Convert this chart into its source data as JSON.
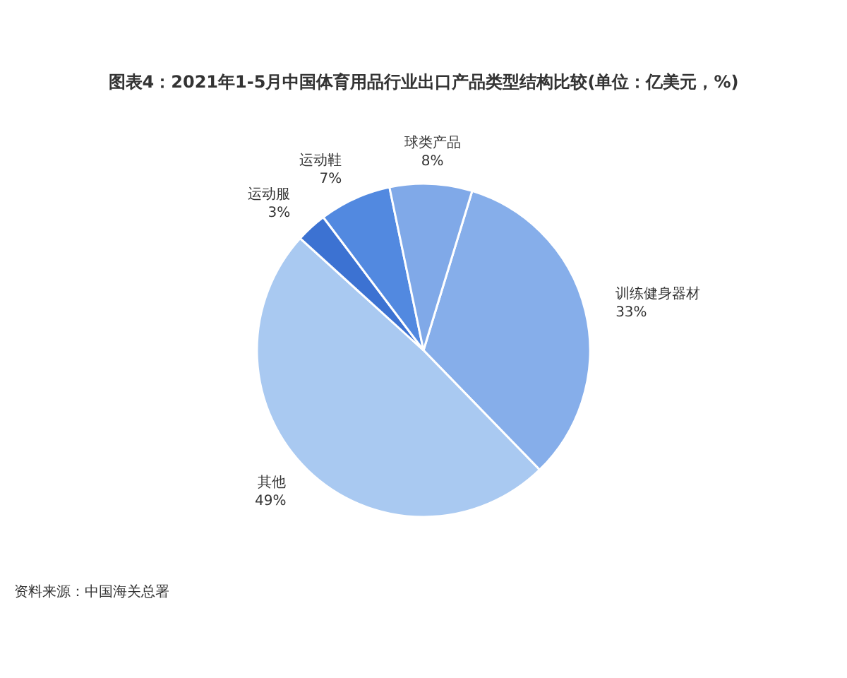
{
  "chart_data": {
    "type": "pie",
    "title": "图表4：2021年1-5月中国体育用品行业出口产品类型结构比较(单位：亿美元，%)",
    "categories": [
      "训练健身器材",
      "其他",
      "运动服",
      "运动鞋",
      "球类产品"
    ],
    "values": [
      33,
      49,
      3,
      7,
      8
    ],
    "colors": [
      "#86aeea",
      "#a9c9f1",
      "#3c72d2",
      "#5289e0",
      "#80a9e8"
    ],
    "value_labels": [
      "33%",
      "49%",
      "3%",
      "7%",
      "8%"
    ],
    "annotations": [
      "资料来源：中国海关总署"
    ]
  }
}
